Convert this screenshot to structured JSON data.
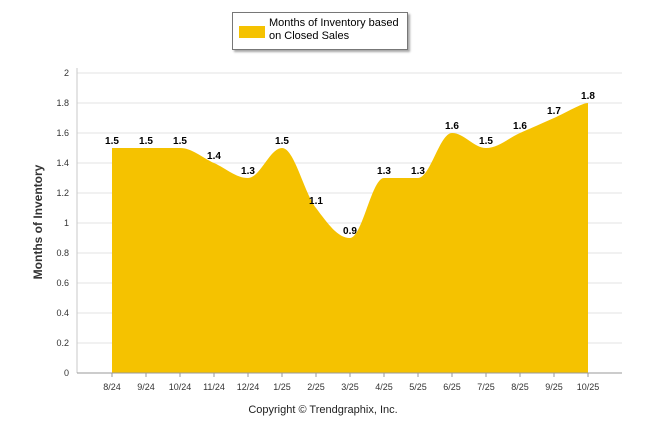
{
  "legend": {
    "label": "Months of Inventory based on Closed Sales",
    "color": "#F5C200"
  },
  "footer": {
    "copyright": "Copyright © Trendgraphix, Inc."
  },
  "chart_data": {
    "type": "area",
    "title": "",
    "xlabel": "",
    "ylabel": "Months of Inventory",
    "ylim": [
      0,
      2
    ],
    "yticks": [
      "0",
      "0.2",
      "0.4",
      "0.6",
      "0.8",
      "1",
      "1.2",
      "1.4",
      "1.6",
      "1.8",
      "2"
    ],
    "grid": true,
    "legend_position": "top-center",
    "categories": [
      "8/24",
      "9/24",
      "10/24",
      "11/24",
      "12/24",
      "1/25",
      "2/25",
      "3/25",
      "4/25",
      "5/25",
      "6/25",
      "7/25",
      "8/25",
      "9/25",
      "10/25"
    ],
    "series": [
      {
        "name": "Months of Inventory based on Closed Sales",
        "color": "#F5C200",
        "values": [
          1.5,
          1.5,
          1.5,
          1.4,
          1.3,
          1.5,
          1.1,
          0.9,
          1.3,
          1.3,
          1.6,
          1.5,
          1.6,
          1.7,
          1.8
        ],
        "labels": [
          "1.5",
          "1.5",
          "1.5",
          "1.4",
          "1.3",
          "1.5",
          "1.1",
          "0.9",
          "1.3",
          "1.3",
          "1.6",
          "1.5",
          "1.6",
          "1.7",
          "1.8"
        ]
      }
    ]
  }
}
